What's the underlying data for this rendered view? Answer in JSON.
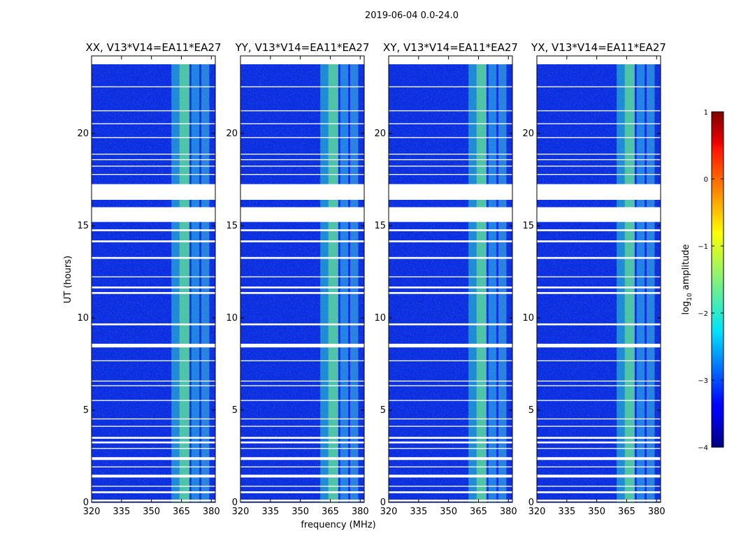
{
  "figure": {
    "suptitle": "2019-06-04 0.0-24.0",
    "xlabel": "frequency (MHz)",
    "ylabel": "UT (hours)"
  },
  "chart_data": {
    "type": "heatmap",
    "colormap": "jet",
    "x_range": [
      320,
      382
    ],
    "y_range": [
      0,
      24.2
    ],
    "x_ticks": [
      320,
      335,
      350,
      365,
      380
    ],
    "x_tick_labels": [
      "320",
      "335",
      "350",
      "365",
      "380"
    ],
    "y_ticks": [
      0,
      5,
      10,
      15,
      20
    ],
    "y_tick_labels": [
      "0",
      "5",
      "10",
      "15",
      "20"
    ],
    "panels": [
      {
        "title": "XX, V13*V14=EA11*EA27",
        "polarization": "XX"
      },
      {
        "title": "YY, V13*V14=EA11*EA27",
        "polarization": "YY"
      },
      {
        "title": "XY, V13*V14=EA11*EA27",
        "polarization": "XY"
      },
      {
        "title": "YX, V13*V14=EA11*EA27",
        "polarization": "YX"
      }
    ],
    "data_bands_mhz": [
      [
        360,
        364
      ],
      [
        364,
        369
      ],
      [
        370,
        374
      ],
      [
        375,
        379
      ]
    ],
    "flagged_intervals_hours": [
      [
        0.05,
        0.15
      ],
      [
        0.5,
        0.6
      ],
      [
        0.85,
        0.9
      ],
      [
        1.35,
        1.5
      ],
      [
        1.9,
        1.95
      ],
      [
        2.3,
        2.45
      ],
      [
        2.9,
        2.95
      ],
      [
        3.2,
        3.3
      ],
      [
        3.45,
        3.55
      ],
      [
        4.1,
        4.15
      ],
      [
        4.5,
        4.55
      ],
      [
        5.5,
        5.55
      ],
      [
        6.3,
        6.35
      ],
      [
        6.55,
        6.6
      ],
      [
        7.65,
        7.7
      ],
      [
        8.4,
        8.6
      ],
      [
        9.6,
        9.7
      ],
      [
        11.3,
        11.4
      ],
      [
        11.6,
        11.7
      ],
      [
        12.2,
        12.25
      ],
      [
        13.2,
        13.3
      ],
      [
        14.1,
        14.2
      ],
      [
        14.7,
        14.8
      ],
      [
        15.2,
        15.3
      ],
      [
        15.3,
        16.0
      ],
      [
        16.4,
        17.25
      ],
      [
        17.75,
        17.8
      ],
      [
        18.2,
        18.25
      ],
      [
        18.55,
        18.6
      ],
      [
        18.85,
        18.9
      ],
      [
        19.75,
        19.8
      ],
      [
        20.5,
        20.55
      ],
      [
        21.2,
        21.25
      ],
      [
        22.5,
        22.55
      ],
      [
        23.75,
        24.2
      ]
    ],
    "colorbar": {
      "label": "log$_{10}$ amplitude",
      "label_text": "log",
      "label_subscript": "10",
      "label_suffix": " amplitude",
      "range": [
        -4,
        1
      ],
      "ticks": [
        -4,
        -3,
        -2,
        -1,
        0,
        1
      ],
      "tick_labels": [
        "−4",
        "−3",
        "−2",
        "−1",
        "0",
        "1"
      ]
    }
  }
}
